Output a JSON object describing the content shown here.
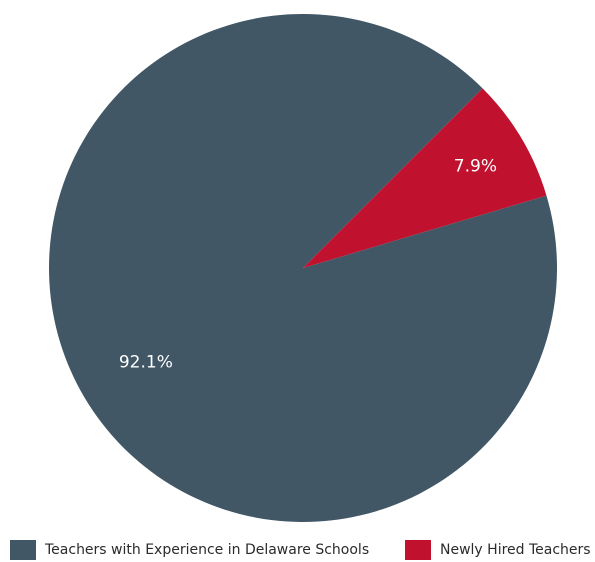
{
  "chart_data": {
    "type": "pie",
    "slices": [
      {
        "name": "Teachers with Experience in Delaware Schools",
        "value": 92.1,
        "label": "92.1%",
        "color": "#415766"
      },
      {
        "name": "Newly Hired Teachers",
        "value": 7.9,
        "label": "7.9%",
        "color": "#c0122e"
      }
    ],
    "legend": {
      "position": "bottom"
    }
  }
}
